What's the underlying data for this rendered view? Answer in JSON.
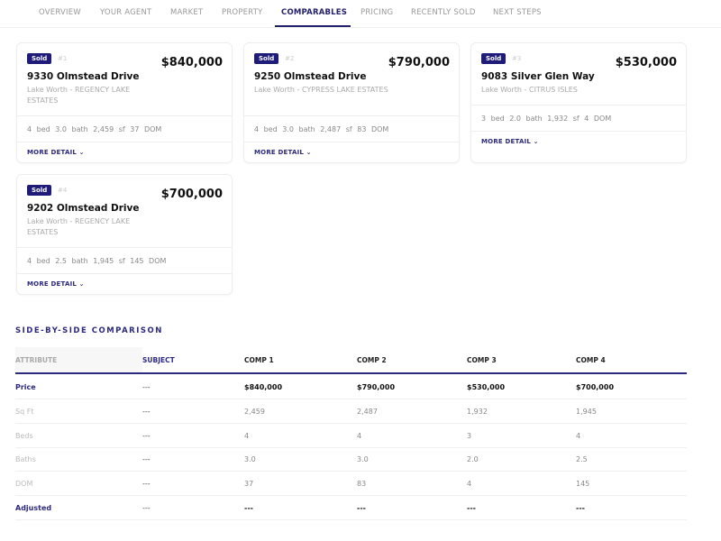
{
  "tabs": [
    {
      "label": "OVERVIEW"
    },
    {
      "label": "YOUR AGENT"
    },
    {
      "label": "MARKET"
    },
    {
      "label": "PROPERTY"
    },
    {
      "label": "COMPARABLES",
      "active": true
    },
    {
      "label": "PRICING"
    },
    {
      "label": "RECENTLY SOLD"
    },
    {
      "label": "NEXT STEPS"
    }
  ],
  "cards": [
    {
      "badge": "Sold",
      "num": "#1",
      "price": "$840,000",
      "address": "9330 Olmstead Drive",
      "location": "Lake Worth - REGENCY LAKE ESTATES",
      "stats": "4 bed 3.0 bath 2,459 sf 37 DOM",
      "more": "MORE DETAIL ⌄"
    },
    {
      "badge": "Sold",
      "num": "#2",
      "price": "$790,000",
      "address": "9250 Olmstead Drive",
      "location": "Lake Worth - CYPRESS LAKE ESTATES",
      "stats": "4 bed 3.0 bath 2,487 sf 83 DOM",
      "more": "MORE DETAIL ⌄"
    },
    {
      "badge": "Sold",
      "num": "#3",
      "price": "$530,000",
      "address": "9083 Silver Glen Way",
      "location": "Lake Worth - CITRUS ISLES",
      "stats": "3 bed 2.0 bath 1,932 sf 4 DOM",
      "more": "MORE DETAIL ⌄"
    },
    {
      "badge": "Sold",
      "num": "#4",
      "price": "$700,000",
      "address": "9202 Olmstead Drive",
      "location": "Lake Worth - REGENCY LAKE ESTATES",
      "stats": "4 bed 2.5 bath 1,945 sf 145 DOM",
      "more": "MORE DETAIL ⌄"
    }
  ],
  "comparison": {
    "title": "SIDE-BY-SIDE COMPARISON",
    "headers": [
      "ATTRIBUTE",
      "SUBJECT",
      "COMP 1",
      "COMP 2",
      "COMP 3",
      "COMP 4"
    ],
    "rows": [
      [
        "Price",
        "---",
        "$840,000",
        "$790,000",
        "$530,000",
        "$700,000"
      ],
      [
        "Sq Ft",
        "---",
        "2,459",
        "2,487",
        "1,932",
        "1,945"
      ],
      [
        "Beds",
        "---",
        "4",
        "4",
        "3",
        "4"
      ],
      [
        "Baths",
        "---",
        "3.0",
        "3.0",
        "2.0",
        "2.5"
      ],
      [
        "DOM",
        "---",
        "37",
        "83",
        "4",
        "145"
      ],
      [
        "Adjusted",
        "---",
        "---",
        "---",
        "---",
        "---"
      ]
    ]
  },
  "colors": {
    "accent": "#2c2980",
    "badge": "#1f1b78"
  }
}
